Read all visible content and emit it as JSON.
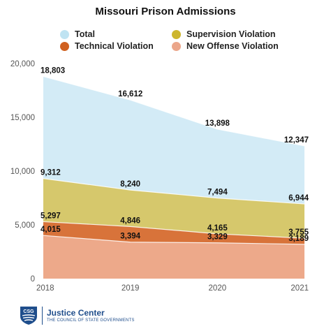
{
  "chart_data": {
    "type": "area",
    "title": "Missouri Prison Admissions",
    "x": [
      "2018",
      "2019",
      "2020",
      "2021"
    ],
    "ylim": [
      0,
      20000
    ],
    "yticks": [
      "0",
      "5,000",
      "10,000",
      "15,000",
      "20,000"
    ],
    "grid": false,
    "legend_position": "top",
    "series": [
      {
        "name": "Total",
        "values": [
          18803,
          16612,
          13898,
          12347
        ],
        "labels": [
          "18,803",
          "16,612",
          "13,898",
          "12,347"
        ],
        "color": "#d3ebf6"
      },
      {
        "name": "Supervision Violation",
        "values": [
          9312,
          8240,
          7494,
          6944
        ],
        "labels": [
          "9,312",
          "8,240",
          "7,494",
          "6,944"
        ],
        "color": "#d6c86c"
      },
      {
        "name": "Technical Violation",
        "values": [
          5297,
          4846,
          4165,
          3755
        ],
        "labels": [
          "5,297",
          "4,846",
          "4,165",
          "3,755"
        ],
        "color": "#d8733a"
      },
      {
        "name": "New Offense Violation",
        "values": [
          4015,
          3394,
          3329,
          3189
        ],
        "labels": [
          "4,015",
          "3,394",
          "3,329",
          "3,189"
        ],
        "color": "#eda98a"
      }
    ]
  },
  "legend": [
    {
      "label": "Total",
      "color": "#bfe3f2"
    },
    {
      "label": "Supervision Violation",
      "color": "#cdb62e"
    },
    {
      "label": "Technical Violation",
      "color": "#d0601f"
    },
    {
      "label": "New Offense Violation",
      "color": "#eba68a"
    }
  ],
  "footer": {
    "logo_text": "CSG",
    "org_name": "Justice Center",
    "org_sub": "THE COUNCIL OF STATE GOVERNMENTS"
  }
}
